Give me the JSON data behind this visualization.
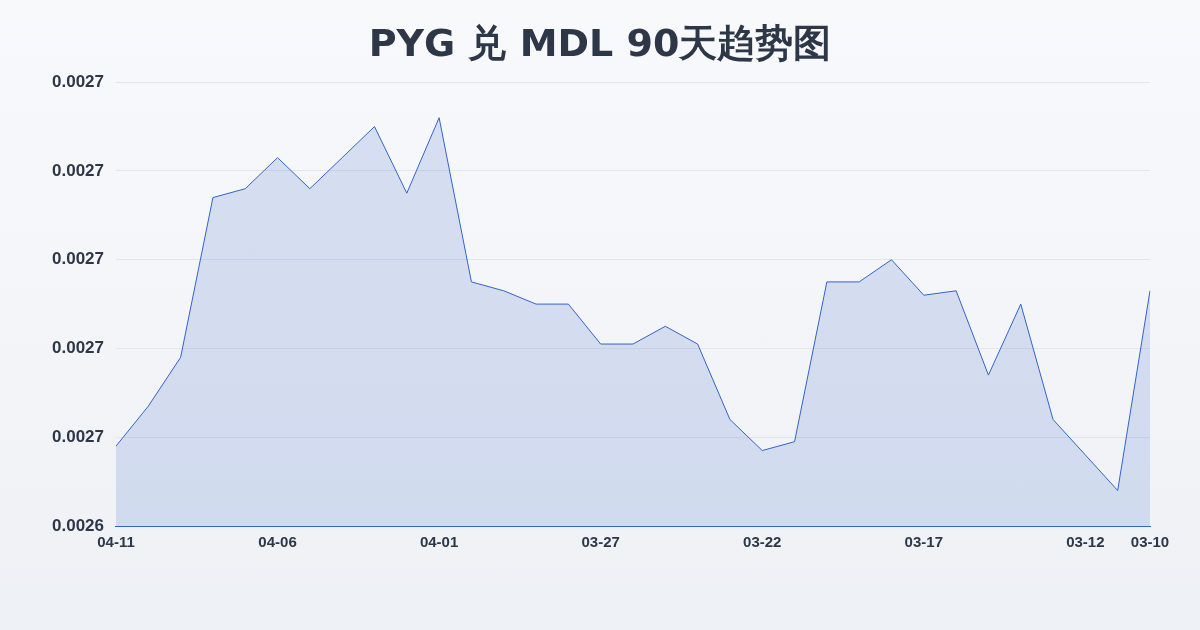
{
  "chart_data": {
    "type": "area",
    "title": "PYG 兑 MDL 90天趋势图",
    "categories": [
      "04-11",
      null,
      null,
      null,
      null,
      "04-06",
      null,
      null,
      null,
      null,
      "04-01",
      null,
      null,
      null,
      null,
      "03-27",
      null,
      null,
      null,
      null,
      "03-22",
      null,
      null,
      null,
      null,
      "03-17",
      null,
      null,
      null,
      null,
      "03-12",
      null,
      "03-10"
    ],
    "series": [
      {
        "color": "#3563c9",
        "values": [
          0.002658,
          0.002667,
          0.002678,
          0.002714,
          0.002716,
          0.002723,
          0.002716,
          0.002723,
          0.00273,
          0.002715,
          0.002732,
          0.002695,
          0.002693,
          0.00269,
          0.00269,
          0.002681,
          0.002681,
          0.002685,
          0.002681,
          0.002664,
          0.002657,
          0.002659,
          0.002695,
          0.002695,
          0.0027,
          0.002692,
          0.002693,
          0.002674,
          0.00269,
          0.002664,
          0.002656,
          0.002648,
          0.002693
        ]
      }
    ],
    "ylim": [
      0.00264,
      0.00274
    ],
    "yticks": [
      {
        "value": 0.00264,
        "label": "0.0026"
      },
      {
        "value": 0.00266,
        "label": "0.0027"
      },
      {
        "value": 0.00268,
        "label": "0.0027"
      },
      {
        "value": 0.0027,
        "label": "0.0027"
      },
      {
        "value": 0.00272,
        "label": "0.0027"
      },
      {
        "value": 0.00274,
        "label": "0.0027"
      }
    ],
    "grid": "y",
    "legend": false,
    "marker": "none"
  }
}
